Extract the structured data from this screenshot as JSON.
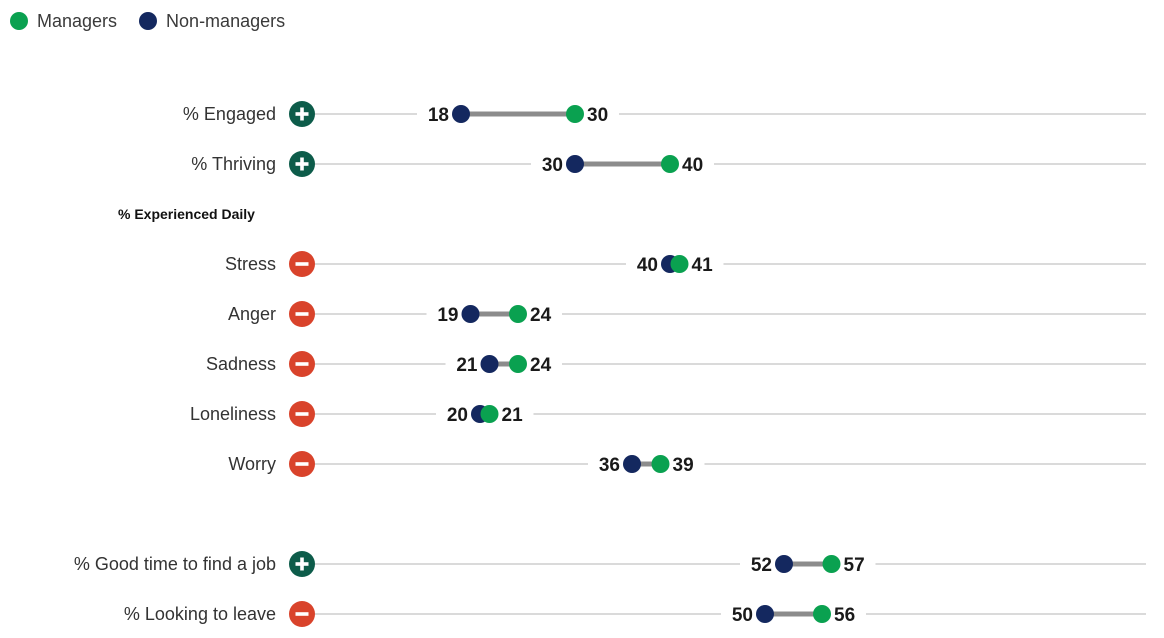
{
  "legend": [
    {
      "label": "Managers",
      "color": "#0aa150"
    },
    {
      "label": "Non-managers",
      "color": "#14285f"
    }
  ],
  "chart_data": {
    "type": "dumbbell",
    "title": "",
    "xlabel": "",
    "ylabel": "",
    "x_range": [
      0,
      100
    ],
    "grid": false,
    "legend_position": "top-left",
    "series": [
      {
        "name": "Managers",
        "color": "#0aa150"
      },
      {
        "name": "Non-managers",
        "color": "#14285f"
      }
    ],
    "rows": [
      {
        "kind": "item",
        "label": "% Engaged",
        "sign": "+",
        "managers": 30,
        "non_managers": 18
      },
      {
        "kind": "item",
        "label": "% Thriving",
        "sign": "+",
        "managers": 40,
        "non_managers": 30
      },
      {
        "kind": "section",
        "label": "% Experienced Daily"
      },
      {
        "kind": "item",
        "label": "Stress",
        "sign": "−",
        "managers": 41,
        "non_managers": 40
      },
      {
        "kind": "item",
        "label": "Anger",
        "sign": "−",
        "managers": 24,
        "non_managers": 19
      },
      {
        "kind": "item",
        "label": "Sadness",
        "sign": "−",
        "managers": 24,
        "non_managers": 21
      },
      {
        "kind": "item",
        "label": "Loneliness",
        "sign": "−",
        "managers": 21,
        "non_managers": 20
      },
      {
        "kind": "item",
        "label": "Worry",
        "sign": "−",
        "managers": 39,
        "non_managers": 36
      },
      {
        "kind": "gap"
      },
      {
        "kind": "item",
        "label": "% Good time to find a job",
        "sign": "+",
        "managers": 57,
        "non_managers": 52
      },
      {
        "kind": "item",
        "label": "% Looking to leave",
        "sign": "−",
        "managers": 56,
        "non_managers": 50
      }
    ],
    "colors": {
      "positive_badge": "#0d5c4a",
      "negative_badge": "#d9432b",
      "connector": "#8c8c8c",
      "row_line": "#b5b5b5"
    }
  }
}
